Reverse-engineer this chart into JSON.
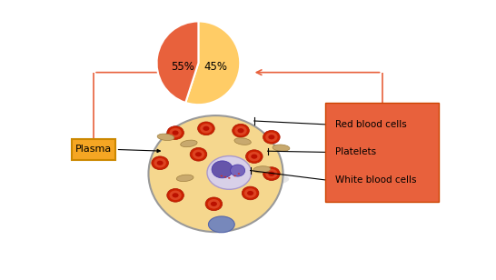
{
  "pie_values": [
    55,
    45
  ],
  "pie_colors": [
    "#FFCC66",
    "#E8613C"
  ],
  "pie_label_55": "55%",
  "pie_label_45": "45%",
  "arrow_color": "#E8613C",
  "plasma_box_color": "#F5A623",
  "plasma_box_edge": "#CC8800",
  "plasma_box_text": "Plasma",
  "legend_box_color": "#E8613C",
  "legend_box_edge": "#CC4400",
  "legend_labels": [
    "Red blood cells",
    "Platelets",
    "White blood cells"
  ],
  "bg_color": "#FFFFFF",
  "line_color": "#000000",
  "shadow_color": "#BBBBBB",
  "rbc_outer": "#CC2200",
  "rbc_edge": "#AA1100",
  "rbc_mid": "#DD4422",
  "rbc_inner": "#BB1100",
  "platelet_face": "#C8A96E",
  "platelet_edge": "#A08040",
  "wbc_face": "#D8D0E8",
  "wbc_edge": "#AA99CC",
  "nucleus1_face": "#6655AA",
  "nucleus_edge": "#4433AA",
  "nucleus2_face": "#7766BB",
  "small_cell_face": "#7788BB",
  "small_cell_edge": "#5566AA",
  "plasma_bg_face": "#F5D78E",
  "plasma_bg_edge": "#999999"
}
